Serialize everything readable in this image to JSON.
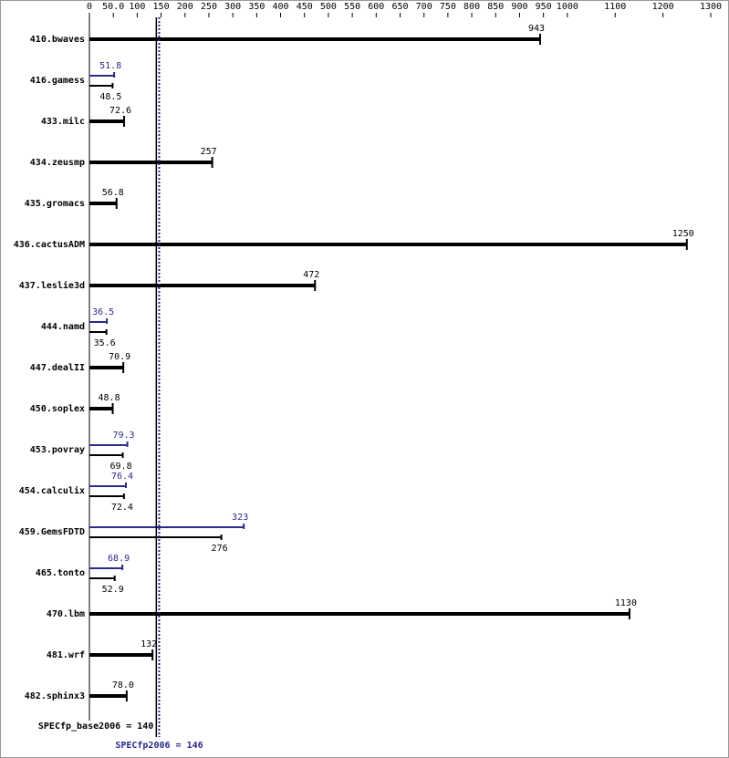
{
  "chart_data": {
    "type": "bar",
    "orientation": "horizontal",
    "categories": [
      "410.bwaves",
      "416.gamess",
      "433.milc",
      "434.zeusmp",
      "435.gromacs",
      "436.cactusADM",
      "437.leslie3d",
      "444.namd",
      "447.dealII",
      "450.soplex",
      "453.povray",
      "454.calculix",
      "459.GemsFDTD",
      "465.tonto",
      "470.lbm",
      "481.wrf",
      "482.sphinx3"
    ],
    "series": [
      {
        "name": "SPECfp_base2006",
        "color": "#000000",
        "values": [
          943,
          48.5,
          72.6,
          257,
          56.8,
          1250,
          472,
          35.6,
          70.9,
          48.8,
          69.8,
          72.4,
          276,
          52.9,
          1130,
          132,
          78.0
        ],
        "value_labels": [
          "943",
          "48.5",
          "72.6",
          "257",
          "56.8",
          "1250",
          "472",
          "35.6",
          "70.9",
          "48.8",
          "69.8",
          "72.4",
          "276",
          "52.9",
          "1130",
          "132",
          "78.0"
        ]
      },
      {
        "name": "SPECfp2006",
        "color": "#2a2a8a",
        "values": [
          null,
          51.8,
          null,
          null,
          null,
          null,
          null,
          36.5,
          null,
          null,
          79.3,
          76.4,
          323,
          68.9,
          null,
          null,
          null
        ],
        "value_labels": [
          null,
          "51.8",
          null,
          null,
          null,
          null,
          null,
          "36.5",
          null,
          null,
          "79.3",
          "76.4",
          "323",
          "68.9",
          null,
          null,
          null
        ]
      }
    ],
    "xlim": [
      0,
      1300
    ],
    "xticks": [
      0,
      {
        "value": 50,
        "label": "50.0"
      },
      100,
      150,
      200,
      250,
      300,
      350,
      400,
      450,
      500,
      550,
      600,
      650,
      700,
      750,
      800,
      850,
      900,
      950,
      1000,
      1100,
      1200,
      1300
    ],
    "reference_lines": [
      {
        "label": "SPECfp_base2006 = 140",
        "value": 140,
        "color": "#000000",
        "style": "solid"
      },
      {
        "label": "SPECfp2006 = 146",
        "value": 146,
        "color": "#2a2a8a",
        "style": "dotted"
      }
    ]
  }
}
